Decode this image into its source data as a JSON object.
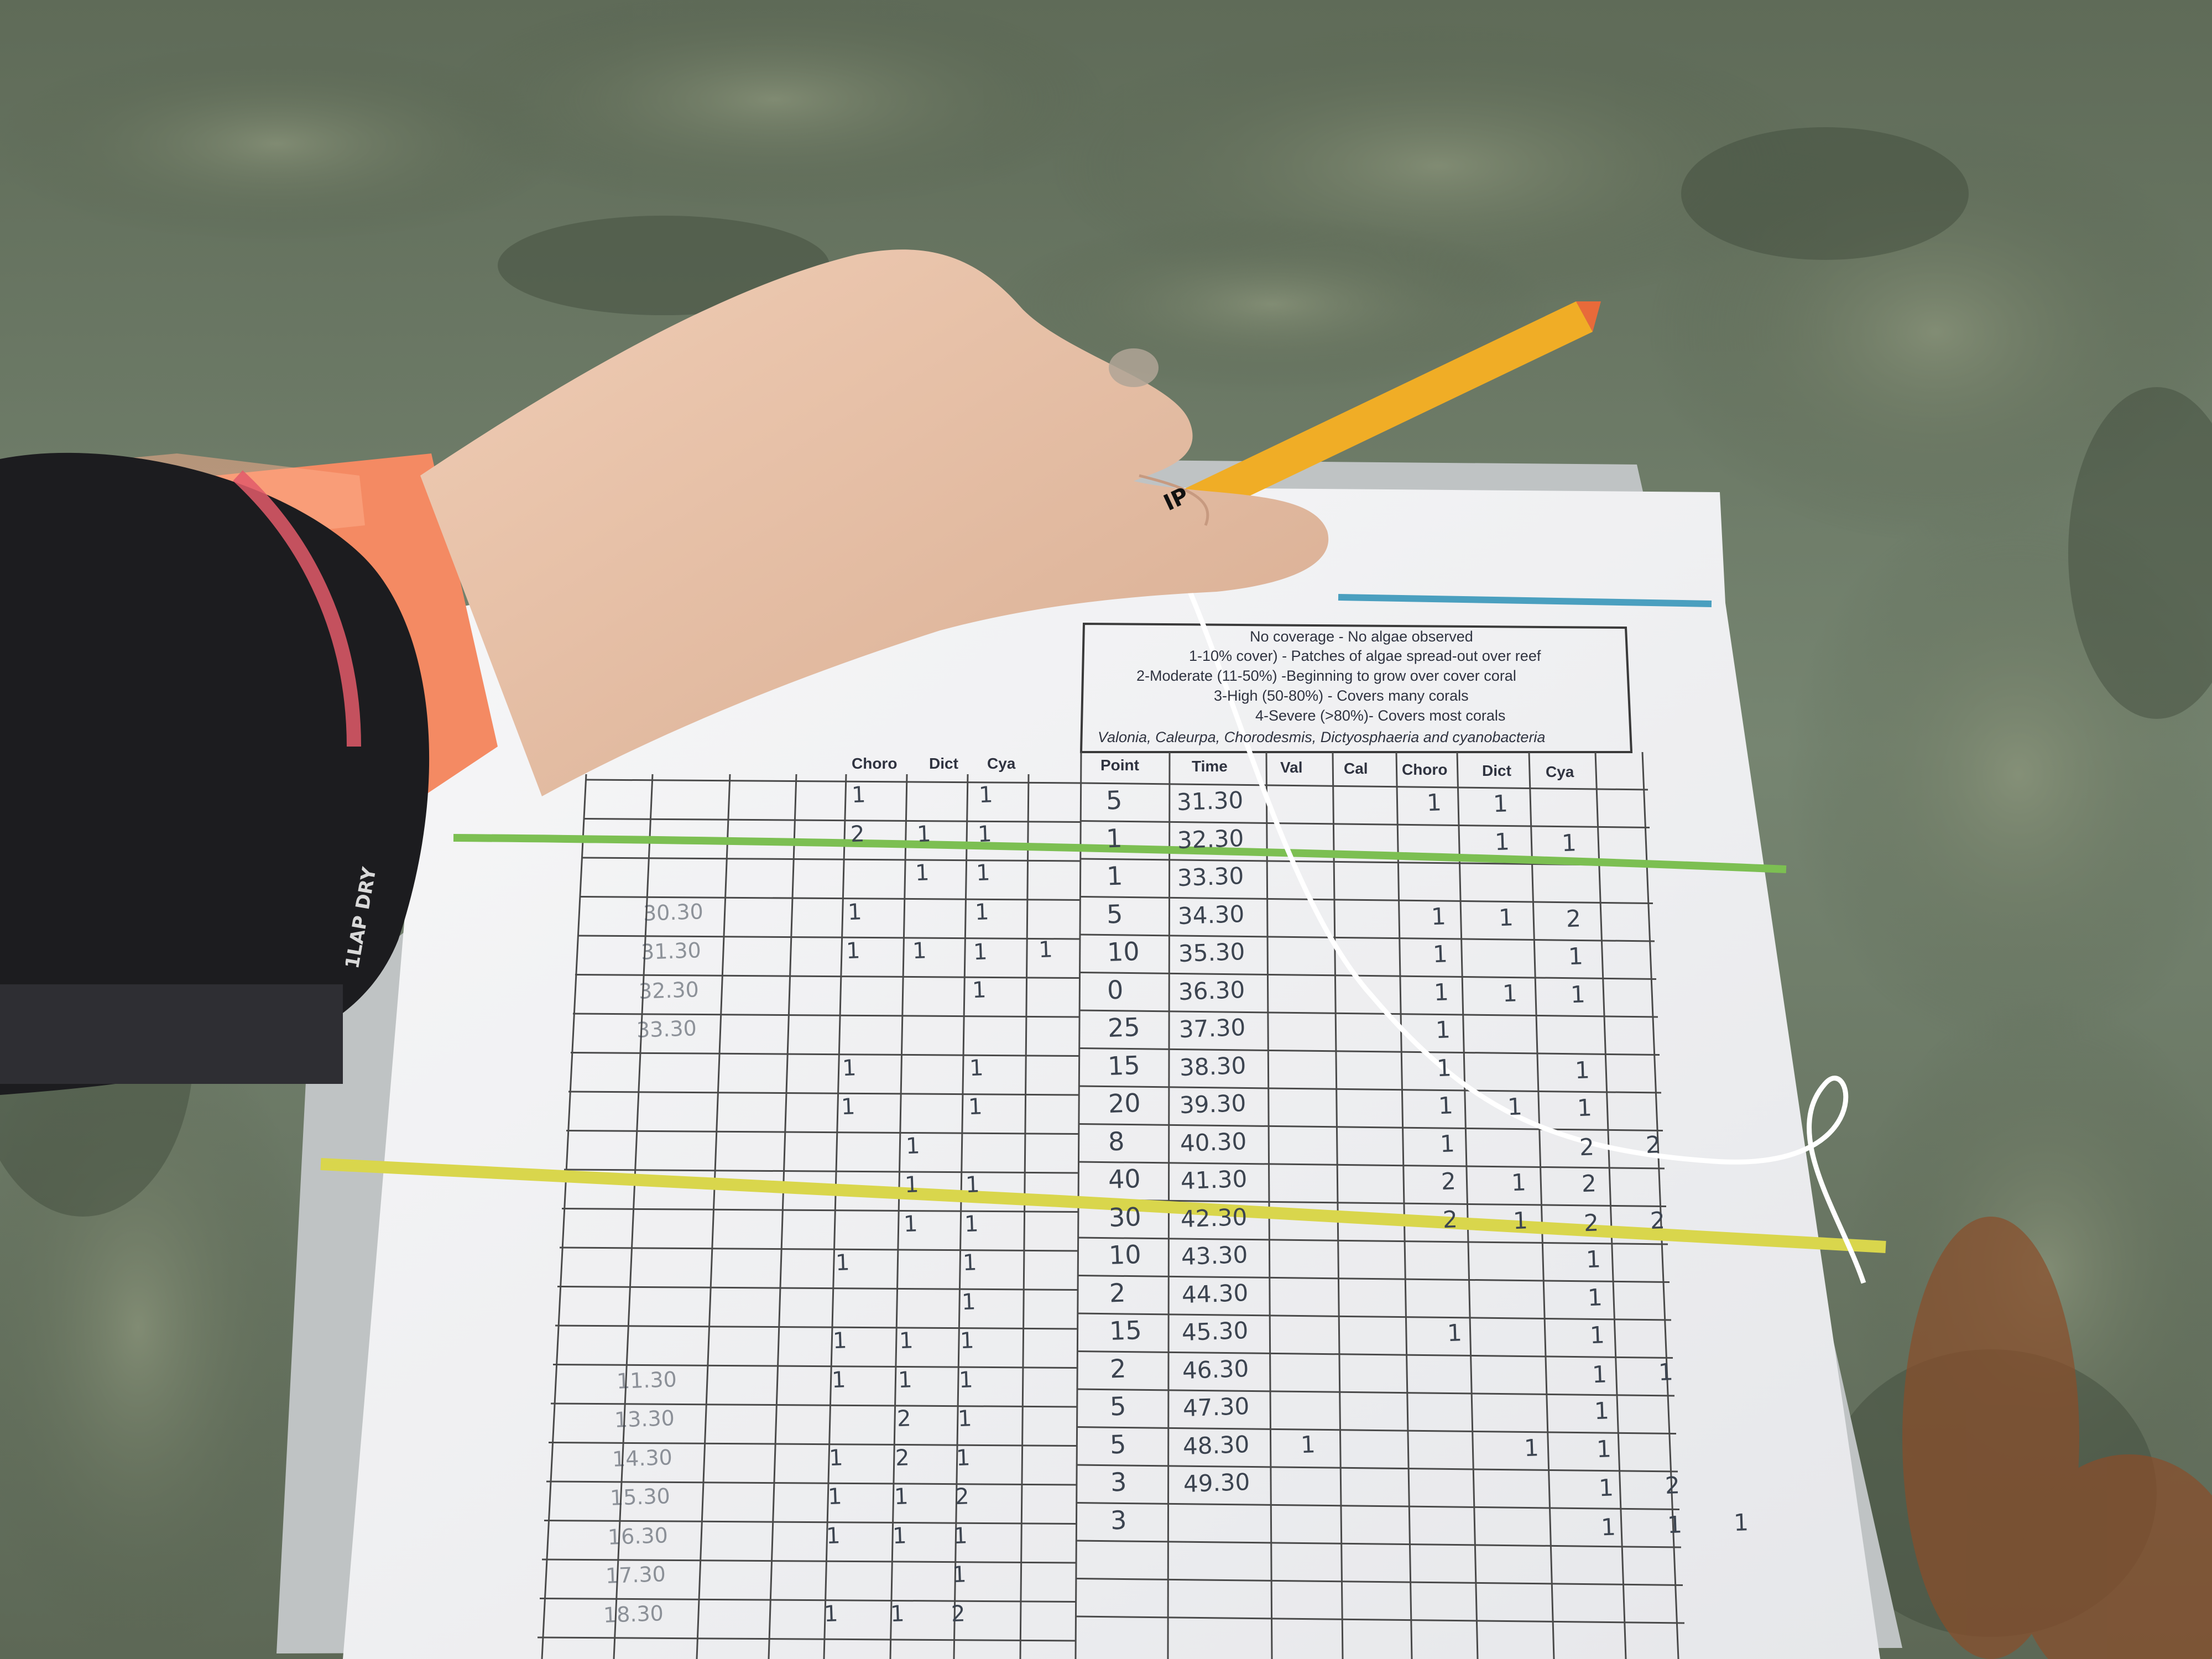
{
  "legend": {
    "lines": [
      "No coverage - No algae observed",
      "1-10% cover) - Patches of algae spread-out over reef",
      "2-Moderate (11-50%) -Beginning to grow over cover coral",
      "3-High (50-80%) - Covers many corals",
      "4-Severe (>80%)- Covers most corals",
      "Valonia, Caleurpa, Chorodesmis, Dictyosphaeria and cyanobacteria"
    ]
  },
  "table": {
    "left_headers": [
      "Choro",
      "Dict",
      "Cya"
    ],
    "right_headers": [
      "Point",
      "Time",
      "Val",
      "Cal",
      "Choro",
      "Dict",
      "Cya"
    ],
    "right_rows": [
      {
        "point": "5",
        "time": "31.30",
        "marks": [
          "",
          "",
          "1",
          "1",
          ""
        ]
      },
      {
        "point": "1",
        "time": "32.30",
        "marks": [
          "",
          "",
          "",
          "1",
          "1"
        ]
      },
      {
        "point": "1",
        "time": "33.30",
        "marks": [
          "",
          "",
          "",
          "",
          ""
        ]
      },
      {
        "point": "5",
        "time": "34.30",
        "marks": [
          "",
          "",
          "1",
          "1",
          "2"
        ]
      },
      {
        "point": "10",
        "time": "35.30",
        "marks": [
          "",
          "",
          "1",
          "",
          "1"
        ]
      },
      {
        "point": "0",
        "time": "36.30",
        "marks": [
          "",
          "",
          "1",
          "1",
          "1"
        ]
      },
      {
        "point": "25",
        "time": "37.30",
        "marks": [
          "",
          "",
          "1",
          "",
          ""
        ]
      },
      {
        "point": "15",
        "time": "38.30",
        "marks": [
          "",
          "",
          "1",
          "",
          "1"
        ]
      },
      {
        "point": "20",
        "time": "39.30",
        "marks": [
          "",
          "",
          "1",
          "1",
          "1"
        ]
      },
      {
        "point": "8",
        "time": "40.30",
        "marks": [
          "",
          "",
          "1",
          "",
          "2 2"
        ]
      },
      {
        "point": "40",
        "time": "41.30",
        "marks": [
          "",
          "",
          "2",
          "1",
          "2"
        ]
      },
      {
        "point": "30",
        "time": "42.30",
        "marks": [
          "",
          "",
          "2",
          "1",
          "2 2"
        ]
      },
      {
        "point": "10",
        "time": "43.30",
        "marks": [
          "",
          "",
          "",
          "",
          "1"
        ]
      },
      {
        "point": "2",
        "time": "44.30",
        "marks": [
          "",
          "",
          "",
          "",
          "1"
        ]
      },
      {
        "point": "15",
        "time": "45.30",
        "marks": [
          "",
          "",
          "1",
          "",
          "1"
        ]
      },
      {
        "point": "2",
        "time": "46.30",
        "marks": [
          "",
          "",
          "",
          "",
          "1 1"
        ]
      },
      {
        "point": "5",
        "time": "47.30",
        "marks": [
          "",
          "",
          "",
          "",
          "1"
        ]
      },
      {
        "point": "5",
        "time": "48.30",
        "marks": [
          "1",
          "",
          "",
          "1",
          "1"
        ]
      },
      {
        "point": "3",
        "time": "49.30",
        "marks": [
          "",
          "",
          "",
          "",
          "1 2"
        ]
      },
      {
        "point": "3",
        "time": "",
        "marks": [
          "",
          "",
          "",
          "",
          "1 1 1"
        ]
      }
    ],
    "left_rows": [
      {
        "time": "",
        "marks": [
          "1",
          "",
          "1"
        ]
      },
      {
        "time": "",
        "marks": [
          "2",
          "1",
          "1"
        ]
      },
      {
        "time": "",
        "marks": [
          "",
          "1",
          "1"
        ]
      },
      {
        "time": "30.30",
        "marks": [
          "1",
          "",
          "1"
        ]
      },
      {
        "time": "31.30",
        "marks": [
          "1",
          "1",
          "1 1"
        ]
      },
      {
        "time": "32.30",
        "marks": [
          "",
          "",
          "1"
        ]
      },
      {
        "time": "33.30",
        "marks": [
          "",
          "",
          ""
        ]
      },
      {
        "time": "",
        "marks": [
          "1",
          "",
          "1"
        ]
      },
      {
        "time": "",
        "marks": [
          "1",
          "",
          "1"
        ]
      },
      {
        "time": "",
        "marks": [
          "",
          "1",
          ""
        ]
      },
      {
        "time": "",
        "marks": [
          "",
          "1",
          "1"
        ]
      },
      {
        "time": "",
        "marks": [
          "",
          "1",
          "1"
        ]
      },
      {
        "time": "",
        "marks": [
          "1",
          "",
          "1"
        ]
      },
      {
        "time": "",
        "marks": [
          "",
          "",
          "1"
        ]
      },
      {
        "time": "",
        "marks": [
          "1",
          "1",
          "1"
        ]
      },
      {
        "time": "11.30",
        "marks": [
          "1",
          "1",
          "1"
        ]
      },
      {
        "time": "13.30",
        "marks": [
          "",
          "2",
          "1"
        ]
      },
      {
        "time": "14.30",
        "marks": [
          "1",
          "2",
          "1"
        ]
      },
      {
        "time": "15.30",
        "marks": [
          "1",
          "1",
          "2"
        ]
      },
      {
        "time": "16.30",
        "marks": [
          "1",
          "1",
          "1"
        ]
      },
      {
        "time": "17.30",
        "marks": [
          "",
          "",
          "1"
        ]
      },
      {
        "time": "18.30",
        "marks": [
          "1",
          "1",
          "2"
        ]
      }
    ]
  },
  "watch": {
    "brand": "1LAP DRY"
  },
  "pencil": {
    "text": "IP"
  },
  "colors": {
    "water": "#6f7f6f",
    "reef": "#55604e",
    "paper": "#f4f4f4",
    "skin": "#e7c3a8",
    "sleeve": "#f48a63",
    "pencil": "#f0ad26",
    "rubber_band_green": "#7cbf52",
    "rubber_band_yellow": "#d9d64c"
  }
}
